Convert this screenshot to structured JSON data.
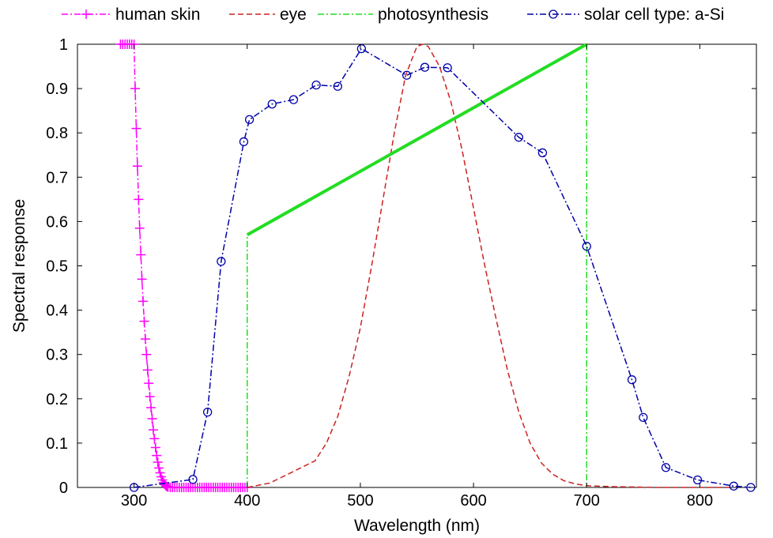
{
  "chart_data": {
    "type": "line",
    "title": "",
    "xlabel": "Wavelength (nm)",
    "ylabel": "Spectral response",
    "xlim": [
      250,
      850
    ],
    "ylim": [
      0,
      1
    ],
    "xticks": [
      300,
      400,
      500,
      600,
      700,
      800
    ],
    "yticks": [
      0,
      0.1,
      0.2,
      0.3,
      0.4,
      0.5,
      0.6,
      0.7,
      0.8,
      0.9,
      1
    ],
    "ytick_labels": [
      "0",
      "0.1",
      "0.2",
      "0.3",
      "0.4",
      "0.5",
      "0.6",
      "0.7",
      "0.8",
      "0.9",
      "1"
    ],
    "grid": false,
    "legend_position": "top (outside, above plot)",
    "series": [
      {
        "name": "human skin",
        "color": "#ff00ff",
        "line": "dash-dot",
        "marker": "plus",
        "x": [
          288,
          290,
          292,
          294,
          296,
          298,
          300,
          301,
          302,
          303,
          304,
          305,
          306,
          307,
          308,
          309,
          310,
          311,
          312,
          313,
          314,
          315,
          316,
          317,
          318,
          319,
          320,
          321,
          322,
          323,
          324,
          325,
          326,
          327,
          328,
          329,
          330,
          332,
          334,
          336,
          338,
          340,
          342,
          344,
          346,
          348,
          350,
          352,
          354,
          356,
          358,
          360,
          362,
          364,
          366,
          368,
          370,
          372,
          374,
          376,
          378,
          380,
          382,
          384,
          386,
          388,
          390,
          392,
          394,
          396,
          398,
          400
        ],
        "y": [
          1,
          1,
          1,
          1,
          1,
          1,
          1,
          0.9,
          0.81,
          0.725,
          0.65,
          0.585,
          0.525,
          0.47,
          0.42,
          0.375,
          0.335,
          0.3,
          0.265,
          0.235,
          0.205,
          0.18,
          0.155,
          0.13,
          0.11,
          0.09,
          0.072,
          0.057,
          0.044,
          0.033,
          0.024,
          0.017,
          0.011,
          0.007,
          0.004,
          0.002,
          0.001,
          0,
          0,
          0,
          0,
          0,
          0,
          0,
          0,
          0,
          0,
          0,
          0,
          0,
          0,
          0,
          0,
          0,
          0,
          0,
          0,
          0,
          0,
          0,
          0,
          0,
          0,
          0,
          0,
          0,
          0,
          0,
          0,
          0,
          0,
          0
        ]
      },
      {
        "name": "eye",
        "color": "#cc2222",
        "line": "dashed",
        "marker": "none",
        "x": [
          400,
          420,
          440,
          460,
          470,
          480,
          490,
          500,
          510,
          520,
          530,
          540,
          550,
          555,
          560,
          570,
          580,
          590,
          600,
          610,
          620,
          630,
          640,
          650,
          660,
          670,
          680,
          690,
          700,
          720,
          740,
          760,
          780,
          800,
          830
        ],
        "y": [
          0,
          0.01,
          0.035,
          0.06,
          0.1,
          0.16,
          0.25,
          0.36,
          0.5,
          0.65,
          0.8,
          0.93,
          0.995,
          1,
          0.995,
          0.95,
          0.87,
          0.76,
          0.63,
          0.5,
          0.38,
          0.265,
          0.17,
          0.1,
          0.055,
          0.03,
          0.015,
          0.008,
          0.004,
          0.002,
          0.001,
          0,
          0,
          0,
          0
        ]
      },
      {
        "name": "photosynthesis",
        "color": "#22dd22",
        "line": "dash-dot",
        "marker": "none",
        "x": [
          400,
          400,
          700,
          700
        ],
        "y": [
          0,
          0.57,
          1,
          0
        ]
      },
      {
        "name": "solar cell type: a-Si",
        "color": "#0000aa",
        "line": "dash-dot",
        "marker": "circle",
        "x": [
          300,
          352,
          365,
          377,
          397,
          402,
          422,
          441,
          461,
          480,
          501,
          541,
          557,
          577,
          640,
          661,
          700,
          740,
          750,
          770,
          798,
          830,
          845
        ],
        "y": [
          0,
          0.018,
          0.17,
          0.51,
          0.78,
          0.83,
          0.865,
          0.875,
          0.908,
          0.905,
          0.99,
          0.93,
          0.948,
          0.947,
          0.79,
          0.755,
          0.544,
          0.243,
          0.158,
          0.045,
          0.017,
          0.003,
          0
        ]
      }
    ]
  }
}
